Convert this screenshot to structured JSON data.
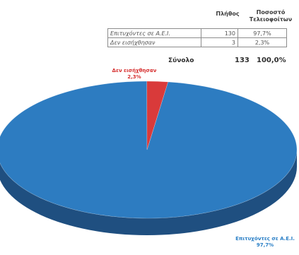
{
  "table": {
    "header_count": "Πλήθος",
    "header_percent_line1": "Ποσοστό",
    "header_percent_line2": "Τελειοφοίτων",
    "rows": [
      {
        "label": "Επιτυχόντες σε Α.Ε.Ι.",
        "count": "130",
        "percent": "97,7%"
      },
      {
        "label": "Δεν εισήχθησαν",
        "count": "3",
        "percent": "2,3%"
      }
    ],
    "total_label": "Σύνολο",
    "total_count": "133",
    "total_percent": "100,0%"
  },
  "chart_data": {
    "type": "pie",
    "style": "3d",
    "categories": [
      "Επιτυχόντες σε Α.Ε.Ι.",
      "Δεν εισήχθησαν"
    ],
    "values": [
      130,
      3
    ],
    "percent_labels": [
      "97,7%",
      "2,3%"
    ],
    "colors": [
      "#2d7cc1",
      "#d93a3a"
    ],
    "side_colors": [
      "#1f4f80",
      "#8f2424"
    ],
    "label_colors": [
      "#2a7fc6",
      "#d63030"
    ],
    "labels": [
      {
        "name": "Επιτυχόντες σε Α.Ε.Ι.",
        "value": "97,7%"
      },
      {
        "name": "Δεν εισήχθησαν",
        "value": "2,3%"
      }
    ]
  }
}
